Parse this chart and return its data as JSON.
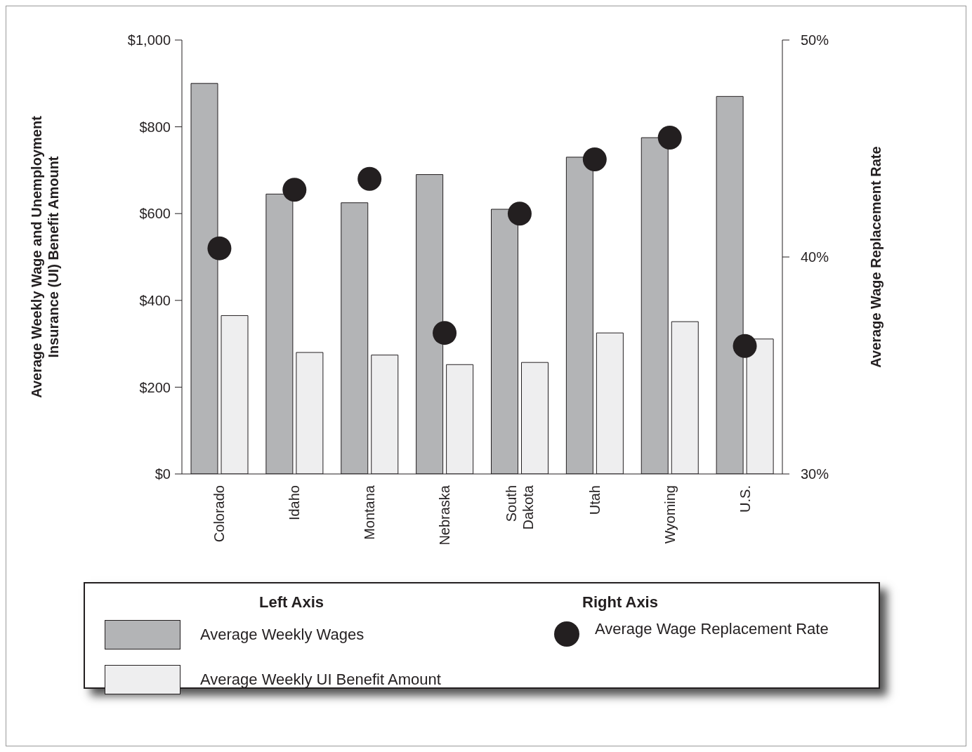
{
  "chart_data": {
    "type": "bar",
    "xlabel": null,
    "ylabel": "Average Weekly Wage and Unemployment Insurance (UI) Benefit Amount",
    "y2label": "Average Wage Replacement Rate",
    "categories": [
      "Colorado",
      "Idaho",
      "Montana",
      "Nebraska",
      "South Dakota",
      "Utah",
      "Wyoming",
      "U.S."
    ],
    "series": [
      {
        "name": "Average Weekly Wages",
        "color": "#b3b4b6",
        "values": [
          900,
          645,
          625,
          690,
          610,
          730,
          775,
          870
        ]
      },
      {
        "name": "Average Weekly UI Benefit Amount",
        "color": "#eeeeef",
        "values": [
          365,
          280,
          274,
          252,
          257,
          325,
          351,
          311
        ]
      },
      {
        "name": "Average Wage Replacement Rate",
        "type": "scatter",
        "axis": "y2",
        "color": "#231f20",
        "values": [
          40.4,
          43.1,
          43.6,
          36.5,
          42.0,
          44.5,
          45.5,
          35.9
        ]
      }
    ],
    "ylim": [
      0,
      1000
    ],
    "yticks": [
      {
        "value": 0,
        "label": "$0"
      },
      {
        "value": 200,
        "label": "$200"
      },
      {
        "value": 400,
        "label": "$400"
      },
      {
        "value": 600,
        "label": "$600"
      },
      {
        "value": 800,
        "label": "$800"
      },
      {
        "value": 1000,
        "label": "$1,000"
      }
    ],
    "y2lim": [
      30,
      50
    ],
    "y2ticks": [
      {
        "value": 30,
        "label": "30%"
      },
      {
        "value": 40,
        "label": "40%"
      },
      {
        "value": 50,
        "label": "50%"
      }
    ],
    "annotations": [
      "Left Axis",
      "Right Axis"
    ],
    "marker": "circle",
    "grid": false,
    "legend": "bottom"
  }
}
